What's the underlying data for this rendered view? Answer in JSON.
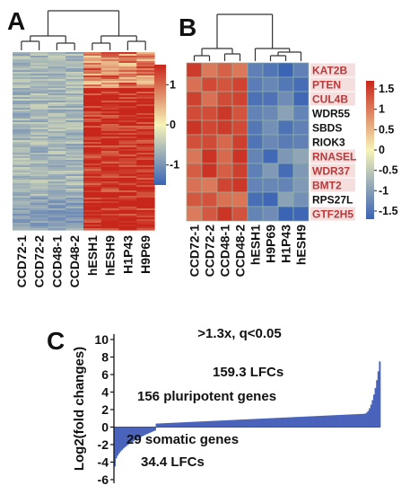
{
  "panels": {
    "a": "A",
    "b": "B",
    "c": "C"
  },
  "colors": {
    "heat_low": "#3a63b5",
    "heat_mid": "#f7f4b8",
    "heat_high": "#c8261a",
    "highlight_text": "#b83a3a",
    "highlight_bg": "#f5dede",
    "bar_fill": "#4a63bb",
    "dendrogram": "#333333"
  },
  "heatmap_a": {
    "columns": [
      "CCD72-1",
      "CCD72-2",
      "CCD48-1",
      "CCD48-2",
      "hESH1",
      "hESH9",
      "H1P43",
      "H9P69"
    ],
    "colorbar_ticks": [
      {
        "value": 1,
        "label": "1"
      },
      {
        "value": 0,
        "label": "0"
      },
      {
        "value": -1,
        "label": "-1"
      }
    ],
    "colorbar_range": [
      -1.5,
      1.5
    ]
  },
  "heatmap_b": {
    "columns": [
      "CCD72-1",
      "CCD72-2",
      "CCD48-1",
      "CCD48-2",
      "hESH1",
      "H9P69",
      "H1P43",
      "hESH9"
    ],
    "genes": [
      {
        "name": "KAT2B",
        "highlight": true
      },
      {
        "name": "PTEN",
        "highlight": true
      },
      {
        "name": "CUL4B",
        "highlight": true
      },
      {
        "name": "WDR55",
        "highlight": false
      },
      {
        "name": "SBDS",
        "highlight": false
      },
      {
        "name": "RIOK3",
        "highlight": false
      },
      {
        "name": "RNASEL",
        "highlight": true
      },
      {
        "name": "WDR37",
        "highlight": true
      },
      {
        "name": "BMT2",
        "highlight": true
      },
      {
        "name": "RPS27L",
        "highlight": false
      },
      {
        "name": "GTF2H5",
        "highlight": true
      }
    ],
    "colorbar_ticks": [
      {
        "value": 1.5,
        "label": "1.5"
      },
      {
        "value": 1,
        "label": "1"
      },
      {
        "value": 0.5,
        "label": "0.5"
      },
      {
        "value": 0,
        "label": "0"
      },
      {
        "value": -0.5,
        "label": "-0.5"
      },
      {
        "value": -1,
        "label": "-1"
      },
      {
        "value": -1.5,
        "label": "-1.5"
      }
    ],
    "colorbar_range": [
      -1.7,
      1.7
    ]
  },
  "chart_data": {
    "type": "bar",
    "title": ">1.3x, q<0.05",
    "ylabel": "Log2(fold changes)",
    "ylim": [
      -6,
      10
    ],
    "yticks": [
      -6,
      -4,
      -2,
      0,
      2,
      4,
      6,
      8,
      10
    ],
    "annotations": [
      "159.3 LFCs",
      "156 pluripotent genes",
      "29 somatic genes",
      "34.4 LFCs"
    ],
    "series": [
      {
        "group": "somatic",
        "count": 29,
        "min": -4.5,
        "max": -0.4
      },
      {
        "group": "pluripotent",
        "count": 156,
        "min": 0.4,
        "max": 7.5
      }
    ]
  }
}
